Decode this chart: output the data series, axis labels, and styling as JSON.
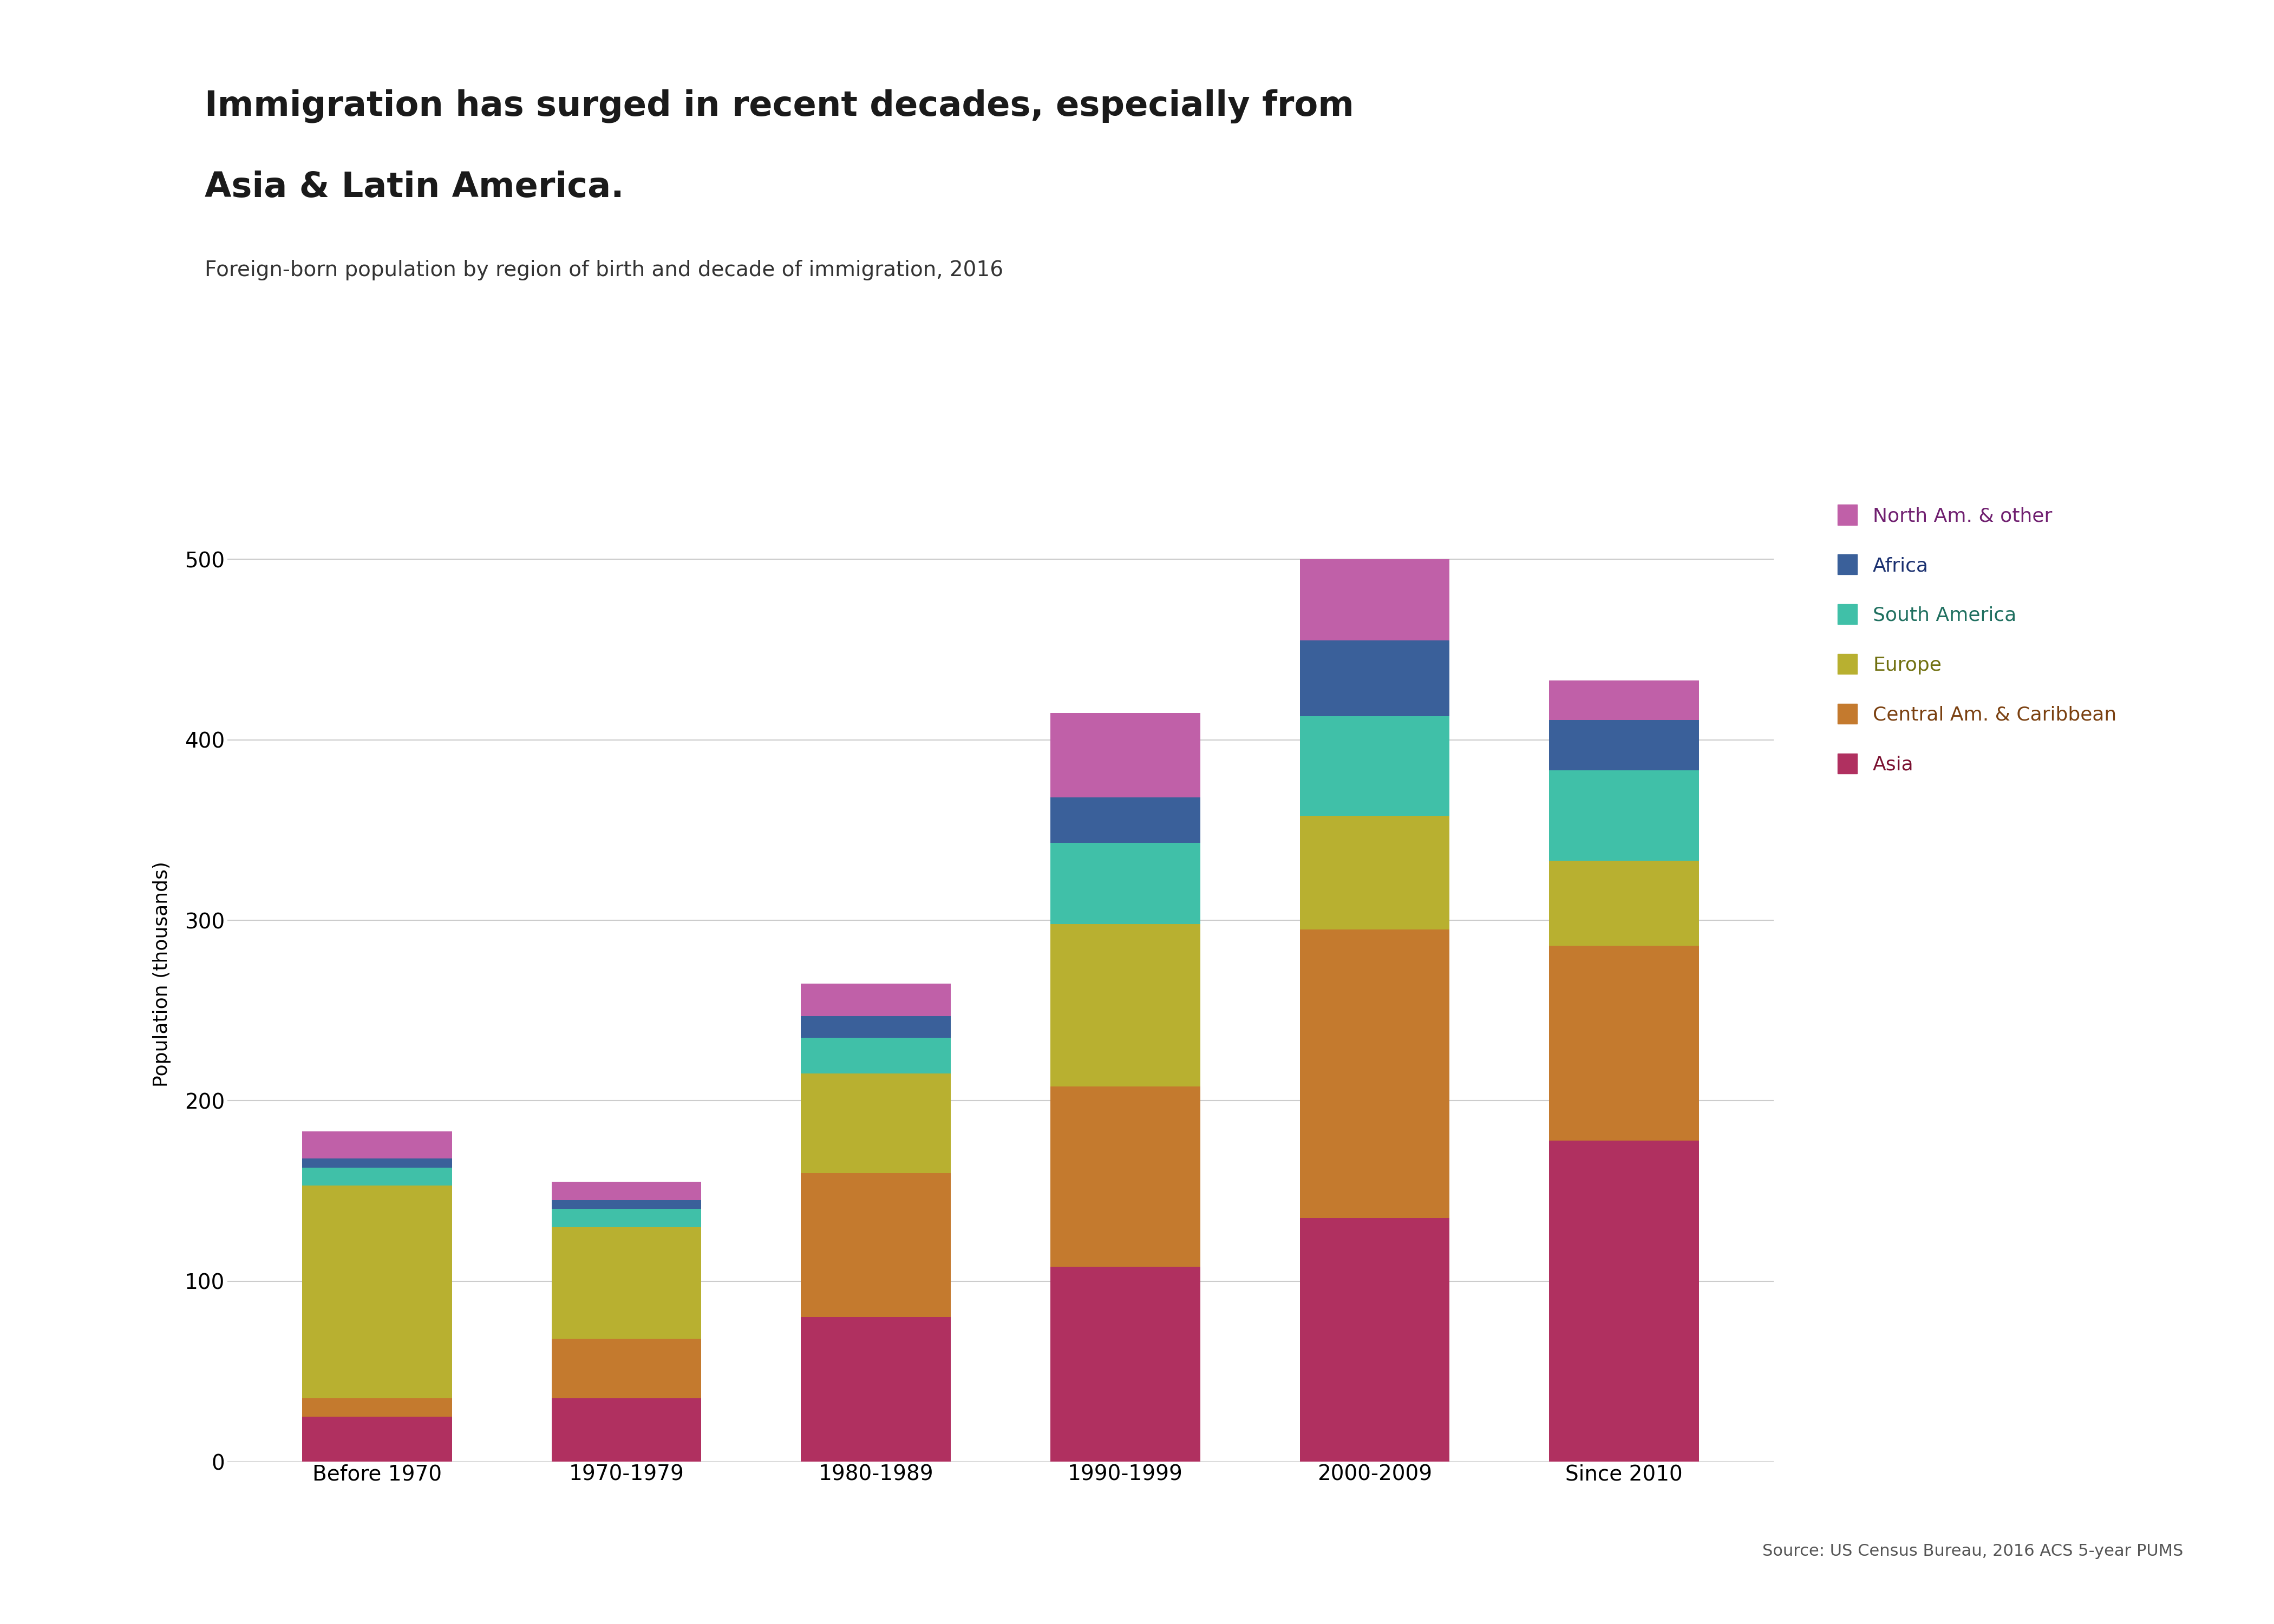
{
  "title_line1": "Immigration has surged in recent decades, especially from",
  "title_line2": "Asia & Latin America.",
  "subtitle": "Foreign-born population by region of birth and decade of immigration, 2016",
  "source": "Source: US Census Bureau, 2016 ACS 5-year PUMS",
  "ylabel": "Population (thousands)",
  "categories": [
    "Before 1970",
    "1970-1979",
    "1980-1989",
    "1990-1999",
    "2000-2009",
    "Since 2010"
  ],
  "regions": [
    "Asia",
    "Central Am. & Caribbean",
    "Europe",
    "South America",
    "Africa",
    "North Am. & other"
  ],
  "colors": [
    "#b03060",
    "#c47a2e",
    "#b8b030",
    "#40c0a8",
    "#3a609a",
    "#c060a8"
  ],
  "legend_text_colors": [
    "#7a1030",
    "#7a4010",
    "#707010",
    "#207060",
    "#1a3070",
    "#702070"
  ],
  "data": {
    "Asia": [
      25,
      35,
      80,
      108,
      135,
      178
    ],
    "Central Am. & Caribbean": [
      10,
      33,
      80,
      100,
      160,
      108
    ],
    "Europe": [
      118,
      62,
      55,
      90,
      63,
      47
    ],
    "South America": [
      10,
      10,
      20,
      45,
      55,
      50
    ],
    "Africa": [
      5,
      5,
      12,
      25,
      42,
      28
    ],
    "North Am. & other": [
      15,
      10,
      18,
      47,
      45,
      22
    ]
  },
  "ylim": [
    0,
    540
  ],
  "yticks": [
    0,
    100,
    200,
    300,
    400,
    500
  ],
  "background_color": "#ffffff",
  "title_fontsize": 46,
  "subtitle_fontsize": 28,
  "axis_label_fontsize": 26,
  "tick_fontsize": 28,
  "legend_fontsize": 26,
  "source_fontsize": 22,
  "bar_width": 0.6
}
